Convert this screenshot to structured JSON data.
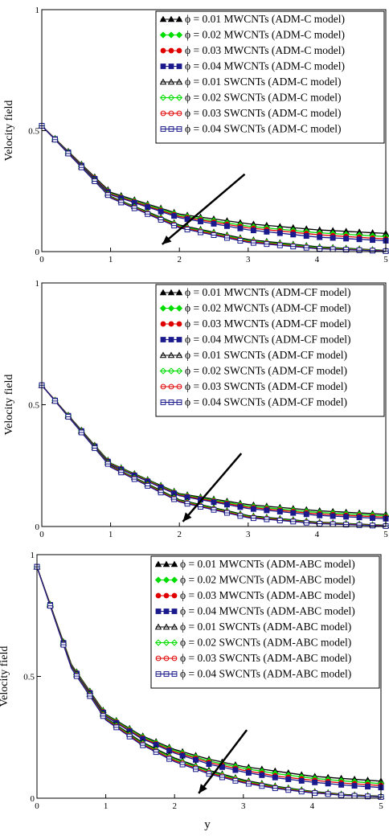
{
  "xlabel_shared": "y",
  "chart_data": [
    {
      "type": "line",
      "title": "",
      "ylabel": "Velocity field",
      "xlabel": "",
      "xlim": [
        0,
        5
      ],
      "ylim": [
        0,
        1
      ],
      "xticks": [
        "0",
        "1",
        "2",
        "3",
        "4",
        "5"
      ],
      "yticks": [
        "0",
        "0.5",
        "1"
      ],
      "grid": false,
      "legend_position": "top-right",
      "arrow": {
        "from": [
          2.95,
          0.32
        ],
        "to": [
          1.75,
          0.03
        ]
      },
      "series": [
        {
          "name": "ϕ = 0.01 MWCNTs (ADM-C model)",
          "color": "#000000",
          "marker": "triangle",
          "filled": true,
          "x": [
            0,
            1,
            2,
            3,
            4,
            5
          ],
          "values": [
            0.52,
            0.245,
            0.155,
            0.115,
            0.09,
            0.075
          ]
        },
        {
          "name": "ϕ = 0.02 MWCNTs (ADM-C model)",
          "color": "#00dd00",
          "marker": "diamond",
          "filled": true,
          "x": [
            0,
            1,
            2,
            3,
            4,
            5
          ],
          "values": [
            0.52,
            0.24,
            0.15,
            0.105,
            0.078,
            0.062
          ]
        },
        {
          "name": "ϕ = 0.03 MWCNTs (ADM-C model)",
          "color": "#e00000",
          "marker": "circle",
          "filled": true,
          "x": [
            0,
            1,
            2,
            3,
            4,
            5
          ],
          "values": [
            0.52,
            0.238,
            0.145,
            0.098,
            0.07,
            0.052
          ]
        },
        {
          "name": "ϕ = 0.04 MWCNTs (ADM-C model)",
          "color": "#1a1a8c",
          "marker": "square",
          "filled": true,
          "x": [
            0,
            1,
            2,
            3,
            4,
            5
          ],
          "values": [
            0.52,
            0.235,
            0.14,
            0.09,
            0.06,
            0.045
          ]
        },
        {
          "name": "ϕ = 0.01 SWCNTs (ADM-C model)",
          "color": "#000000",
          "marker": "triangle",
          "filled": false,
          "x": [
            0,
            1,
            2,
            3,
            4,
            5
          ],
          "values": [
            0.52,
            0.228,
            0.11,
            0.05,
            0.02,
            0.005
          ]
        },
        {
          "name": "ϕ = 0.02 SWCNTs (ADM-C model)",
          "color": "#00dd00",
          "marker": "diamond",
          "filled": false,
          "x": [
            0,
            1,
            2,
            3,
            4,
            5
          ],
          "values": [
            0.52,
            0.226,
            0.106,
            0.046,
            0.017,
            0.004
          ]
        },
        {
          "name": "ϕ = 0.03 SWCNTs (ADM-C model)",
          "color": "#e00000",
          "marker": "circle",
          "filled": false,
          "x": [
            0,
            1,
            2,
            3,
            4,
            5
          ],
          "values": [
            0.52,
            0.224,
            0.102,
            0.042,
            0.014,
            0.003
          ]
        },
        {
          "name": "ϕ = 0.04 SWCNTs (ADM-C model)",
          "color": "#1a1a8c",
          "marker": "square",
          "filled": false,
          "x": [
            0,
            1,
            2,
            3,
            4,
            5
          ],
          "values": [
            0.52,
            0.222,
            0.098,
            0.038,
            0.012,
            0.002
          ]
        }
      ]
    },
    {
      "type": "line",
      "title": "",
      "ylabel": "Velocity field",
      "xlabel": "",
      "xlim": [
        0,
        5
      ],
      "ylim": [
        0,
        1
      ],
      "xticks": [
        "0",
        "1",
        "2",
        "3",
        "4",
        "5"
      ],
      "yticks": [
        "0",
        "0.5",
        "1"
      ],
      "grid": false,
      "legend_position": "top-right",
      "arrow": {
        "from": [
          2.9,
          0.3
        ],
        "to": [
          2.05,
          0.02
        ]
      },
      "series": [
        {
          "name": "ϕ = 0.01 MWCNTs (ADM-CF model)",
          "color": "#000000",
          "marker": "triangle",
          "filled": true,
          "x": [
            0,
            1,
            2,
            3,
            4,
            5
          ],
          "values": [
            0.58,
            0.26,
            0.135,
            0.09,
            0.065,
            0.05
          ]
        },
        {
          "name": "ϕ = 0.02 MWCNTs (ADM-CF model)",
          "color": "#00dd00",
          "marker": "diamond",
          "filled": true,
          "x": [
            0,
            1,
            2,
            3,
            4,
            5
          ],
          "values": [
            0.58,
            0.258,
            0.132,
            0.084,
            0.058,
            0.044
          ]
        },
        {
          "name": "ϕ = 0.03 MWCNTs (ADM-CF model)",
          "color": "#e00000",
          "marker": "circle",
          "filled": true,
          "x": [
            0,
            1,
            2,
            3,
            4,
            5
          ],
          "values": [
            0.58,
            0.256,
            0.129,
            0.079,
            0.052,
            0.038
          ]
        },
        {
          "name": "ϕ = 0.04 MWCNTs (ADM-CF model)",
          "color": "#1a1a8c",
          "marker": "square",
          "filled": true,
          "x": [
            0,
            1,
            2,
            3,
            4,
            5
          ],
          "values": [
            0.58,
            0.254,
            0.126,
            0.074,
            0.046,
            0.032
          ]
        },
        {
          "name": "ϕ = 0.01 SWCNTs (ADM-CF model)",
          "color": "#000000",
          "marker": "triangle",
          "filled": false,
          "x": [
            0,
            1,
            2,
            3,
            4,
            5
          ],
          "values": [
            0.58,
            0.25,
            0.11,
            0.045,
            0.018,
            0.005
          ]
        },
        {
          "name": "ϕ = 0.02 SWCNTs (ADM-CF model)",
          "color": "#00dd00",
          "marker": "diamond",
          "filled": false,
          "x": [
            0,
            1,
            2,
            3,
            4,
            5
          ],
          "values": [
            0.58,
            0.248,
            0.107,
            0.042,
            0.016,
            0.004
          ]
        },
        {
          "name": "ϕ = 0.03 SWCNTs (ADM-CF model)",
          "color": "#e00000",
          "marker": "circle",
          "filled": false,
          "x": [
            0,
            1,
            2,
            3,
            4,
            5
          ],
          "values": [
            0.58,
            0.246,
            0.104,
            0.039,
            0.014,
            0.003
          ]
        },
        {
          "name": "ϕ = 0.04 SWCNTs (ADM-CF model)",
          "color": "#1a1a8c",
          "marker": "square",
          "filled": false,
          "x": [
            0,
            1,
            2,
            3,
            4,
            5
          ],
          "values": [
            0.58,
            0.244,
            0.101,
            0.036,
            0.012,
            0.002
          ]
        }
      ]
    },
    {
      "type": "line",
      "title": "",
      "ylabel": "Velocity field",
      "xlabel": "y",
      "xlim": [
        0,
        5
      ],
      "ylim": [
        0,
        1
      ],
      "xticks": [
        "0",
        "1",
        "2",
        "3",
        "4",
        "5"
      ],
      "yticks": [
        "0",
        "0.5",
        "1"
      ],
      "grid": false,
      "legend_position": "top-right",
      "arrow": {
        "from": [
          3.05,
          0.28
        ],
        "to": [
          2.35,
          0.02
        ]
      },
      "series": [
        {
          "name": "ϕ = 0.01 MWCNTs (ADM-ABC model)",
          "color": "#000000",
          "marker": "triangle",
          "filled": true,
          "x": [
            0,
            0.5,
            1,
            1.5,
            2,
            2.5,
            3,
            3.5,
            4,
            4.5,
            5
          ],
          "values": [
            0.95,
            0.55,
            0.345,
            0.26,
            0.2,
            0.16,
            0.13,
            0.11,
            0.09,
            0.08,
            0.07
          ]
        },
        {
          "name": "ϕ = 0.02 MWCNTs (ADM-ABC model)",
          "color": "#00dd00",
          "marker": "diamond",
          "filled": true,
          "x": [
            0,
            0.5,
            1,
            1.5,
            2,
            2.5,
            3,
            3.5,
            4,
            4.5,
            5
          ],
          "values": [
            0.95,
            0.548,
            0.342,
            0.256,
            0.195,
            0.153,
            0.123,
            0.1,
            0.082,
            0.07,
            0.06
          ]
        },
        {
          "name": "ϕ = 0.03 MWCNTs (ADM-ABC model)",
          "color": "#e00000",
          "marker": "circle",
          "filled": true,
          "x": [
            0,
            0.5,
            1,
            1.5,
            2,
            2.5,
            3,
            3.5,
            4,
            4.5,
            5
          ],
          "values": [
            0.95,
            0.546,
            0.339,
            0.252,
            0.19,
            0.147,
            0.115,
            0.09,
            0.074,
            0.061,
            0.052
          ]
        },
        {
          "name": "ϕ = 0.04 MWCNTs (ADM-ABC model)",
          "color": "#1a1a8c",
          "marker": "square",
          "filled": true,
          "x": [
            0,
            0.5,
            1,
            1.5,
            2,
            2.5,
            3,
            3.5,
            4,
            4.5,
            5
          ],
          "values": [
            0.95,
            0.544,
            0.336,
            0.248,
            0.185,
            0.14,
            0.108,
            0.083,
            0.066,
            0.053,
            0.044
          ]
        },
        {
          "name": "ϕ = 0.01 SWCNTs (ADM-ABC model)",
          "color": "#000000",
          "marker": "triangle",
          "filled": false,
          "x": [
            0,
            0.5,
            1,
            1.5,
            2,
            2.5,
            3,
            3.5,
            4,
            4.5,
            5
          ],
          "values": [
            0.95,
            0.54,
            0.33,
            0.235,
            0.165,
            0.115,
            0.075,
            0.048,
            0.028,
            0.015,
            0.008
          ]
        },
        {
          "name": "ϕ = 0.02 SWCNTs (ADM-ABC model)",
          "color": "#00dd00",
          "marker": "diamond",
          "filled": false,
          "x": [
            0,
            0.5,
            1,
            1.5,
            2,
            2.5,
            3,
            3.5,
            4,
            4.5,
            5
          ],
          "values": [
            0.95,
            0.538,
            0.327,
            0.231,
            0.16,
            0.11,
            0.071,
            0.045,
            0.026,
            0.013,
            0.007
          ]
        },
        {
          "name": "ϕ = 0.03 SWCNTs (ADM-ABC model)",
          "color": "#e00000",
          "marker": "circle",
          "filled": false,
          "x": [
            0,
            0.5,
            1,
            1.5,
            2,
            2.5,
            3,
            3.5,
            4,
            4.5,
            5
          ],
          "values": [
            0.95,
            0.536,
            0.324,
            0.227,
            0.155,
            0.105,
            0.067,
            0.042,
            0.024,
            0.012,
            0.006
          ]
        },
        {
          "name": "ϕ = 0.04 SWCNTs (ADM-ABC model)",
          "color": "#1a1a8c",
          "marker": "square",
          "filled": false,
          "x": [
            0,
            0.5,
            1,
            1.5,
            2,
            2.5,
            3,
            3.5,
            4,
            4.5,
            5
          ],
          "values": [
            0.95,
            0.534,
            0.321,
            0.223,
            0.15,
            0.1,
            0.063,
            0.039,
            0.022,
            0.011,
            0.005
          ]
        }
      ]
    }
  ]
}
